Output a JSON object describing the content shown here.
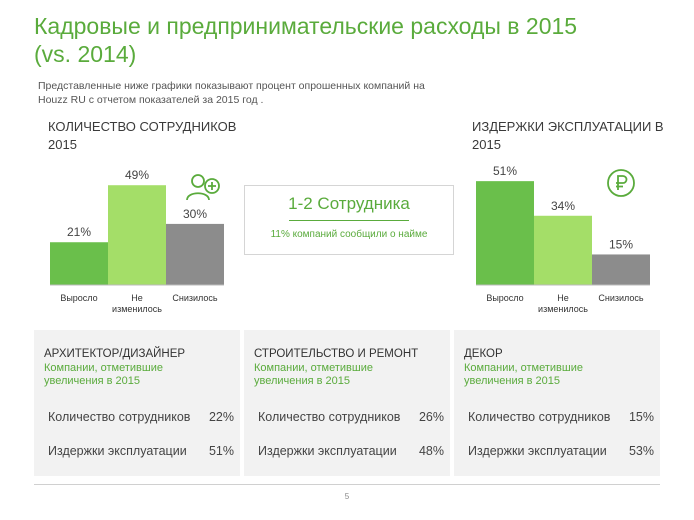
{
  "title": "Кадровые и предпринимательские расходы в 2015 (vs. 2014)",
  "subtitle": "Представленные ниже графики показывают процент опрошенных компаний на Houzz RU с отчетом показателей за 2015 год .",
  "callout": {
    "title": "1-2 Сотрудника",
    "text": "11% компаний сообщили о найме"
  },
  "icons": {
    "staff": "add-user-icon",
    "costs": "ruble-icon"
  },
  "colors": {
    "accent": "#5aab3c",
    "bar_dark_green": "#6abf4b",
    "bar_light_green": "#a4de68",
    "bar_gray": "#8c8c8c",
    "panel_bg": "#f2f2f2"
  },
  "chart_data": [
    {
      "type": "bar",
      "title": "Количество сотрудников 2015",
      "categories": [
        "Выросло",
        "Не изменилось",
        "Снизилось"
      ],
      "values": [
        21,
        49,
        30
      ],
      "value_labels": [
        "21%",
        "49%",
        "30%"
      ],
      "ylim": [
        0,
        55
      ],
      "grid": false,
      "legend": "none"
    },
    {
      "type": "bar",
      "title": "Издержки эксплуатации в 2015",
      "categories": [
        "Выросло",
        "Не изменилось",
        "Снизилось"
      ],
      "values": [
        51,
        34,
        15
      ],
      "value_labels": [
        "51%",
        "34%",
        "15%"
      ],
      "ylim": [
        0,
        55
      ],
      "grid": false,
      "legend": "none"
    }
  ],
  "panels": [
    {
      "title": "Архитектор/дизайнер",
      "subtitle": "Компании, отметившие увеличения в 2015",
      "rows": [
        {
          "label": "Количество сотрудников",
          "value": "22%"
        },
        {
          "label": "Издержки эксплуатации",
          "value": "51%"
        }
      ]
    },
    {
      "title": "Строительство и ремонт",
      "subtitle": "Компании, отметившие увеличения в 2015",
      "rows": [
        {
          "label": "Количество сотрудников",
          "value": "26%"
        },
        {
          "label": "Издержки эксплуатации",
          "value": "48%"
        }
      ]
    },
    {
      "title": "Декор",
      "subtitle": "Компании, отметившие увеличения в 2015",
      "rows": [
        {
          "label": "Количество сотрудников",
          "value": "15%"
        },
        {
          "label": "Издержки эксплуатации",
          "value": "53%"
        }
      ]
    }
  ],
  "page_number": "5"
}
